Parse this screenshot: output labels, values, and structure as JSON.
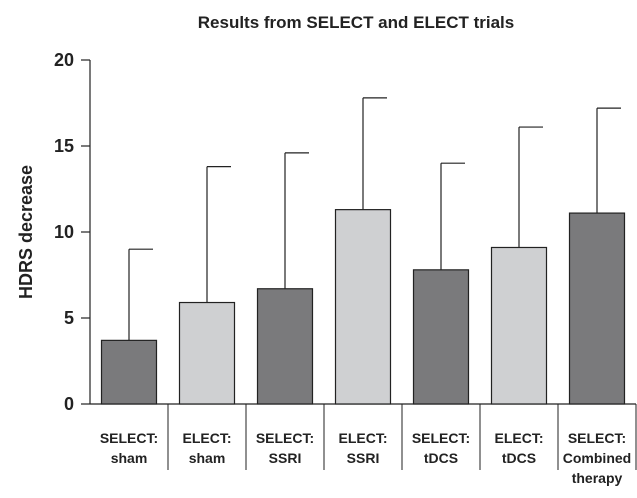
{
  "chart_data": {
    "type": "bar",
    "title": "Results from SELECT and ELECT trials",
    "ylabel": "HDRS decrease",
    "xlabel": "",
    "ylim": [
      0,
      20
    ],
    "yticks": [
      0,
      5,
      10,
      15,
      20
    ],
    "grid": false,
    "categories": [
      [
        "SELECT:",
        "sham"
      ],
      [
        "ELECT:",
        "sham"
      ],
      [
        "SELECT:",
        "SSRI"
      ],
      [
        "ELECT:",
        "SSRI"
      ],
      [
        "SELECT:",
        "tDCS"
      ],
      [
        "ELECT:",
        "tDCS"
      ],
      [
        "SELECT:",
        "Combined",
        "therapy"
      ]
    ],
    "values": [
      3.7,
      5.9,
      6.7,
      11.3,
      7.8,
      9.1,
      11.1
    ],
    "error_upper": [
      9.0,
      13.8,
      14.6,
      17.8,
      14.0,
      16.1,
      17.2
    ],
    "colors": {
      "SELECT": "#7a7a7c",
      "ELECT": "#cfd0d2",
      "stroke": "#222222"
    },
    "bar_trial": [
      "SELECT",
      "ELECT",
      "SELECT",
      "ELECT",
      "SELECT",
      "ELECT",
      "SELECT"
    ]
  }
}
